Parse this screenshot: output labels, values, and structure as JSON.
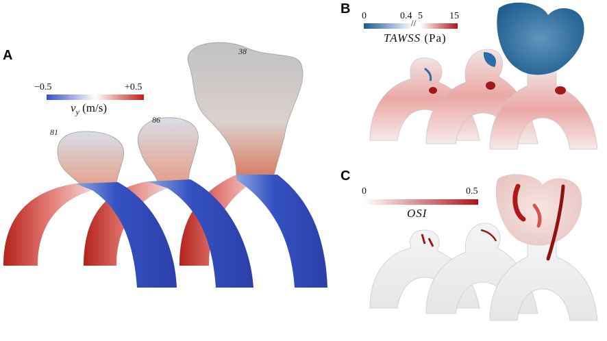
{
  "panels": {
    "A": {
      "letter": "A",
      "colorbar": {
        "min": "−0.5",
        "max": "+0.5",
        "quantity": "v",
        "subscript": "y",
        "unit": " (m/s)",
        "colors": [
          "#3a4fc6",
          "#ffffff",
          "#c0201a"
        ]
      },
      "cases": [
        "81",
        "86",
        "38"
      ]
    },
    "B": {
      "letter": "B",
      "colorbar": {
        "ticks": [
          "0",
          "0.4",
          "5",
          "15"
        ],
        "break": "//",
        "quantity": "TAWSS",
        "unit": " (Pa)",
        "colors": [
          "#1a5a93",
          "#ffffff",
          "#b3131a"
        ]
      }
    },
    "C": {
      "letter": "C",
      "colorbar": {
        "ticks": [
          "0",
          "0.5"
        ],
        "quantity": "OSI",
        "colors": [
          "#ffffff",
          "#b3131a"
        ]
      }
    }
  }
}
